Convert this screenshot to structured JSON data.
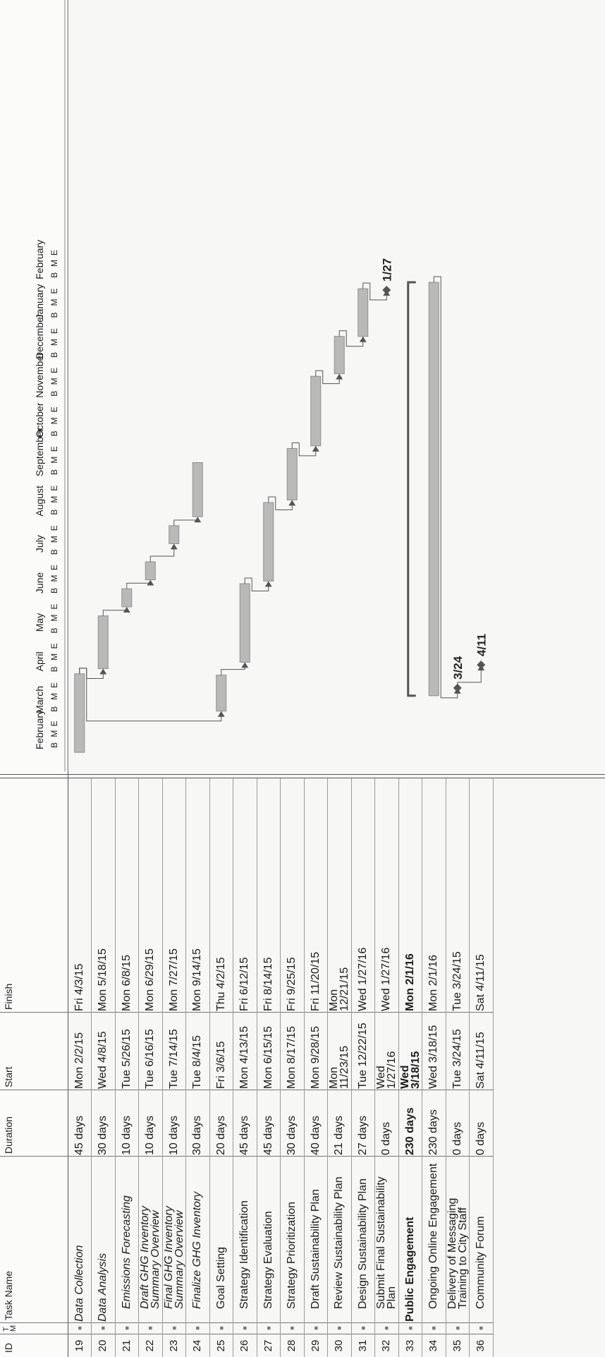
{
  "columns": {
    "id": "ID",
    "mode": "T\nM",
    "task_name": "Task Name",
    "duration": "Duration",
    "start": "Start",
    "finish": "Finish"
  },
  "timeline": {
    "months": [
      "February",
      "March",
      "April",
      "May",
      "June",
      "July",
      "August",
      "September",
      "October",
      "November",
      "December",
      "January",
      "February"
    ],
    "tick_letters": [
      "B",
      "M",
      "E"
    ]
  },
  "rows": [
    {
      "id": "19",
      "name": "Data Collection",
      "duration": "45 days",
      "start": "Mon 2/2/15",
      "finish": "Fri 4/3/15"
    },
    {
      "id": "20",
      "name": "Data Analysis",
      "duration": "30 days",
      "start": "Wed 4/8/15",
      "finish": "Mon 5/18/15"
    },
    {
      "id": "21",
      "name": "Emissions Forecasting",
      "duration": "10 days",
      "start": "Tue 5/26/15",
      "finish": "Mon 6/8/15"
    },
    {
      "id": "22",
      "name": "Draft GHG Inventory Summary Overview",
      "duration": "10 days",
      "start": "Tue 6/16/15",
      "finish": "Mon 6/29/15"
    },
    {
      "id": "23",
      "name": "Final GHG Inventory Summary Overview",
      "duration": "10 days",
      "start": "Tue 7/14/15",
      "finish": "Mon 7/27/15"
    },
    {
      "id": "24",
      "name": "Finalize GHG Inventory",
      "duration": "30 days",
      "start": "Tue 8/4/15",
      "finish": "Mon 9/14/15"
    },
    {
      "id": "25",
      "name": "Goal Setting",
      "duration": "20 days",
      "start": "Fri 3/6/15",
      "finish": "Thu 4/2/15"
    },
    {
      "id": "26",
      "name": "Strategy Identification",
      "duration": "45 days",
      "start": "Mon 4/13/15",
      "finish": "Fri 6/12/15"
    },
    {
      "id": "27",
      "name": "Strategy Evaluation",
      "duration": "45 days",
      "start": "Mon 6/15/15",
      "finish": "Fri 8/14/15"
    },
    {
      "id": "28",
      "name": "Strategy Prioritization",
      "duration": "30 days",
      "start": "Mon 8/17/15",
      "finish": "Fri 9/25/15"
    },
    {
      "id": "29",
      "name": "Draft Sustainability Plan",
      "duration": "40 days",
      "start": "Mon 9/28/15",
      "finish": "Fri 11/20/15"
    },
    {
      "id": "30",
      "name": "Review Sustainability Plan",
      "duration": "21 days",
      "start": "Mon 11/23/15",
      "finish": "Mon 12/21/15"
    },
    {
      "id": "31",
      "name": "Design Sustainability Plan",
      "duration": "27 days",
      "start": "Tue 12/22/15",
      "finish": "Wed 1/27/16"
    },
    {
      "id": "32",
      "name": "Submit Final Sustainability Plan",
      "duration": "0 days",
      "start": "Wed 1/27/16",
      "finish": "Wed 1/27/16"
    },
    {
      "id": "33",
      "name": "Public Engagement",
      "duration": "230 days",
      "start": "Wed 3/18/15",
      "finish": "Mon 2/1/16"
    },
    {
      "id": "34",
      "name": "Ongoing Online Engagement",
      "duration": "230 days",
      "start": "Wed 3/18/15",
      "finish": "Mon 2/1/16"
    },
    {
      "id": "35",
      "name": "Delivery of Messaging Training to City Staff",
      "duration": "0 days",
      "start": "Tue 3/24/15",
      "finish": "Tue 3/24/15"
    },
    {
      "id": "36",
      "name": "Community Forum",
      "duration": "0 days",
      "start": "Sat 4/11/15",
      "finish": "Sat 4/11/15"
    }
  ],
  "milestones": {
    "submit_final": "1/27",
    "messaging_training": "3/24",
    "community_forum": "4/11"
  },
  "colors": {
    "bar": "#b9b9b9",
    "bar_border": "#8f8f8f",
    "summary": "#555555",
    "link": "#555555",
    "milestone": "#555555"
  }
}
